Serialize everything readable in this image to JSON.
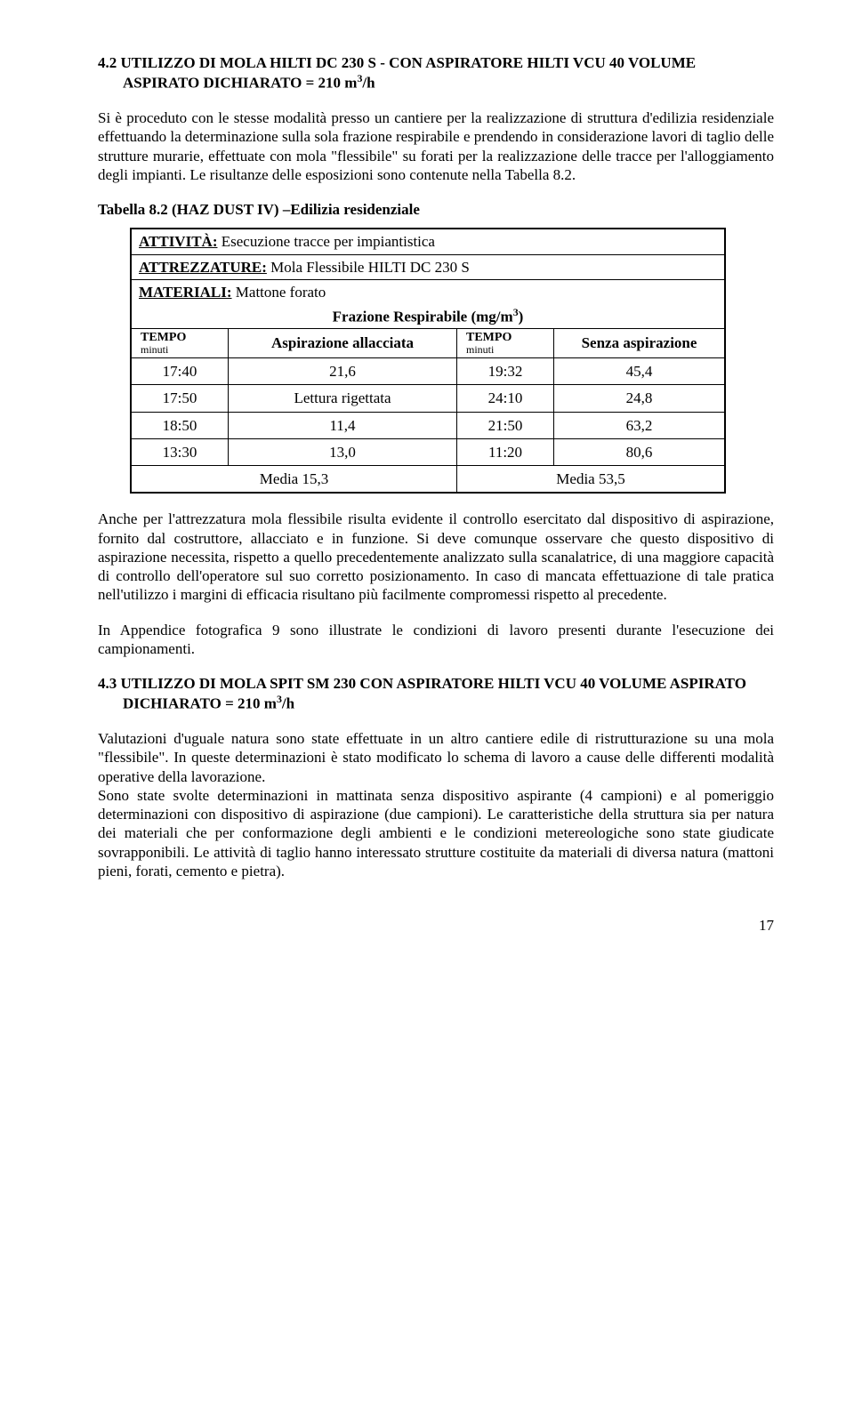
{
  "section42": {
    "title_html": "4.2 UTILIZZO DI MOLA HILTI DC 230 S - CON ASPIRATORE HILTI VCU 40 VOLUME ASPIRATO DICHIARATO = 210 m<sup>3</sup>/h",
    "p1": "Si è proceduto con le stesse modalità presso un cantiere per la realizzazione di struttura d'edilizia residenziale effettuando la determinazione sulla sola frazione respirabile e prendendo in considerazione lavori di taglio delle strutture murarie, effettuate con mola \"flessibile\" su forati per la realizzazione delle tracce per l'alloggiamento degli impianti. Le risultanze delle esposizioni sono contenute nella Tabella 8.2.",
    "tab_title": "Tabella 8.2 (HAZ DUST IV) –Edilizia residenziale"
  },
  "table": {
    "attivita_label": "ATTIVITÀ:",
    "attivita_value": " Esecuzione tracce per impiantistica",
    "attrezz_label": "ATTREZZATURE:",
    "attrezz_value": " Mola Flessibile HILTI DC 230 S",
    "materiali_label": "MATERIALI:",
    "materiali_value": " Mattone forato",
    "fraz_html": "Frazione Respirabile (mg/m<sup>3</sup>)",
    "tempo_label": "TEMPO",
    "minuti_label": "minuti",
    "asp_all": "Aspirazione allacciata",
    "senza_asp": "Senza aspirazione",
    "rows": [
      {
        "t1": "17:40",
        "v1": "21,6",
        "t2": "19:32",
        "v2": "45,4"
      },
      {
        "t1": "17:50",
        "v1": "Lettura rigettata",
        "t2": "24:10",
        "v2": "24,8"
      },
      {
        "t1": "18:50",
        "v1": "11,4",
        "t2": "21:50",
        "v2": "63,2"
      },
      {
        "t1": "13:30",
        "v1": "13,0",
        "t2": "11:20",
        "v2": "80,6"
      }
    ],
    "media1": "Media 15,3",
    "media2": "Media 53,5"
  },
  "after": {
    "p2": "Anche per l'attrezzatura mola flessibile risulta evidente il controllo esercitato dal dispositivo di aspirazione, fornito dal costruttore, allacciato e in funzione. Si deve comunque osservare che questo dispositivo di aspirazione necessita, rispetto a quello precedentemente analizzato sulla scanalatrice, di una maggiore capacità di controllo dell'operatore sul suo corretto posizionamento. In caso di mancata effettuazione di tale pratica nell'utilizzo i margini di efficacia risultano più facilmente compromessi rispetto al precedente.",
    "p3": "In Appendice fotografica 9 sono illustrate le condizioni di lavoro presenti durante l'esecuzione dei campionamenti."
  },
  "section43": {
    "title_html": "4.3 UTILIZZO DI MOLA SPIT SM 230 CON ASPIRATORE HILTI VCU 40 VOLUME ASPIRATO DICHIARATO = 210 m<sup>3</sup>/h",
    "p4": "Valutazioni d'uguale natura sono state effettuate in un altro cantiere edile di ristrutturazione su una mola \"flessibile\". In queste determinazioni è stato modificato lo schema di lavoro a cause delle differenti modalità operative della lavorazione.",
    "p5": "Sono state svolte determinazioni in mattinata senza dispositivo aspirante (4 campioni) e al pomeriggio determinazioni con dispositivo di aspirazione (due campioni). Le caratteristiche della struttura sia per natura dei materiali che per conformazione degli ambienti e le condizioni metereologiche sono state giudicate sovrapponibili. Le attività di taglio hanno interessato strutture costituite da materiali di diversa natura (mattoni pieni, forati, cemento e pietra)."
  },
  "page_number": "17"
}
